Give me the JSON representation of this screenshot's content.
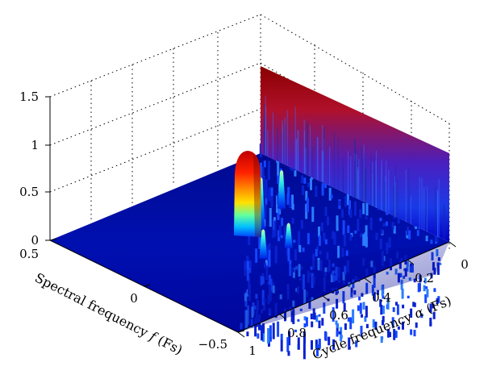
{
  "chart_data": {
    "type": "surface",
    "title": "",
    "xlabel": {
      "prefix": "Cycle frequency ",
      "symbol": "α",
      "suffix": " (Fs)"
    },
    "ylabel": {
      "prefix": "Spectral frequency ",
      "symbol": "f",
      "suffix": " (Fs)"
    },
    "zlabel": "",
    "alpha_range": [
      0,
      1
    ],
    "f_range": [
      -0.5,
      0.5
    ],
    "z_range": [
      0,
      1.5
    ],
    "alpha_ticks": [
      "0",
      "0.2",
      "0.4",
      "0.6",
      "0.8",
      "1"
    ],
    "f_ticks": [
      "0.5",
      "0",
      "−0.5"
    ],
    "z_ticks": [
      "0",
      "0.5",
      "1",
      "1.5"
    ],
    "grid": true,
    "colormap": "jet",
    "features": [
      {
        "name": "alpha-zero ridge",
        "alpha": 0,
        "f_range": [
          0,
          0.5
        ],
        "z_start": 1.5,
        "z_end": 1.0
      },
      {
        "name": "main peak",
        "alpha": 0.12,
        "f": 0.14,
        "z": 1.0
      },
      {
        "name": "secondary peak",
        "alpha": 0.14,
        "f": 0.26,
        "z": 0.45
      },
      {
        "name": "secondary peak",
        "alpha": 0.05,
        "f": 0.1,
        "z": 0.6
      },
      {
        "name": "secondary peak",
        "alpha": 0.08,
        "f": -0.05,
        "z": 0.35
      },
      {
        "name": "secondary peak",
        "alpha": 0.2,
        "f": 0.07,
        "z": 0.3
      }
    ],
    "noise_floor": 0.2
  },
  "colors": {
    "low": "#00008f",
    "mid": "#00ffff",
    "high": "#800000",
    "grid": "#000000"
  }
}
